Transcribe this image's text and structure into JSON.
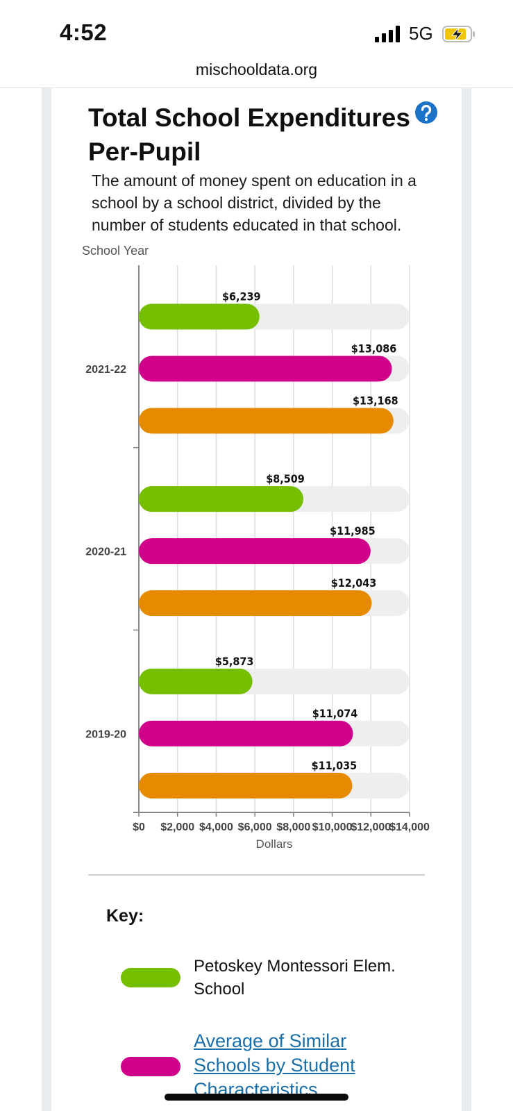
{
  "status_bar": {
    "time": "4:52",
    "network": "5G"
  },
  "browser": {
    "url": "mischooldata.org"
  },
  "card": {
    "title": "Total School Expenditures Per-Pupil",
    "help_icon": "question-icon",
    "description": "The amount of money spent on education in a school by a school district, divided by the number of students educated in that school."
  },
  "chart_data": {
    "type": "bar",
    "orientation": "horizontal",
    "categories": [
      "2021-22",
      "2020-21",
      "2019-20"
    ],
    "series": [
      {
        "name": "Petoskey Montessori Elem. School",
        "color": "#76be00",
        "values": [
          6239,
          8509,
          5873
        ],
        "labels": [
          "$6,239",
          "$8,509",
          "$5,873"
        ]
      },
      {
        "name": "Average of Similar Schools by Student Characteristics",
        "color": "#d0008a",
        "values": [
          13086,
          11985,
          11074
        ],
        "labels": [
          "$13,086",
          "$11,985",
          "$11,074"
        ]
      },
      {
        "name": "",
        "color": "#e68a00",
        "values": [
          13168,
          12043,
          11035
        ],
        "labels": [
          "$13,168",
          "$12,043",
          "$11,035"
        ]
      }
    ],
    "xlim": [
      0,
      14000
    ],
    "xticks": [
      0,
      2000,
      4000,
      6000,
      8000,
      10000,
      12000,
      14000
    ],
    "xtick_labels": [
      "$0",
      "$2,000",
      "$4,000",
      "$6,000",
      "$8,000",
      "$10,000",
      "$12,000",
      "$14,000"
    ],
    "xlabel": "Dollars",
    "ylabel": "School Year",
    "grid": true,
    "track_color": "#eeeeee"
  },
  "key": {
    "title": "Key:",
    "items": [
      {
        "label": "Petoskey Montessori Elem. School",
        "color": "#76be00",
        "is_link": false
      },
      {
        "label": "Average of Similar Schools by Student Characteristics",
        "color": "#d0008a",
        "is_link": true
      }
    ]
  }
}
